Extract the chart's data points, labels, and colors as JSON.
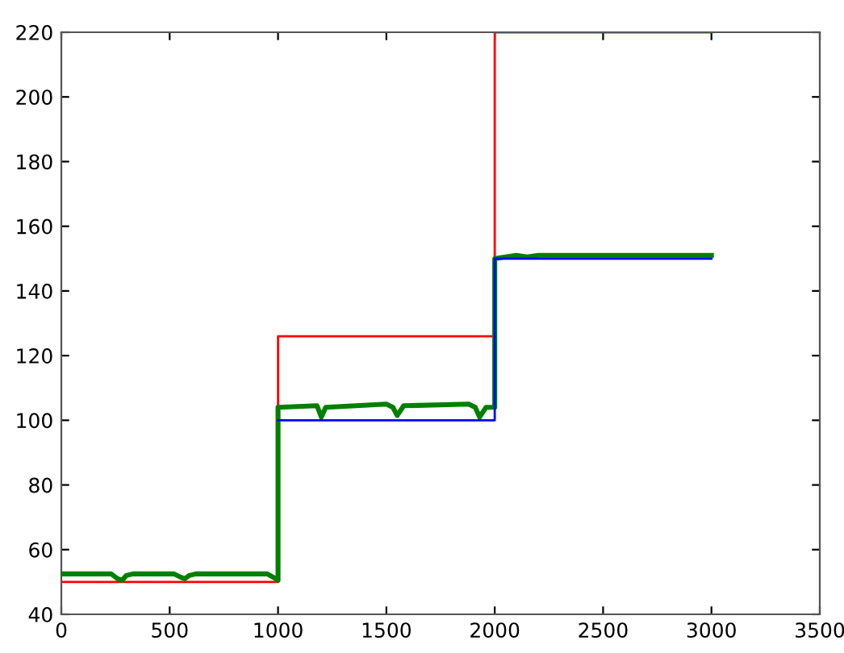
{
  "chart_data": {
    "type": "line",
    "xlim": [
      0,
      3500
    ],
    "ylim": [
      40,
      220
    ],
    "xticks": [
      0,
      500,
      1000,
      1500,
      2000,
      2500,
      3000,
      3500
    ],
    "yticks": [
      40,
      60,
      80,
      100,
      120,
      140,
      160,
      180,
      200,
      220
    ],
    "grid": false,
    "legend": false,
    "marker": "none",
    "line_style": "solid",
    "series": [
      {
        "color": "#0000ff",
        "x": [
          1000,
          2000,
          2000,
          3000
        ],
        "values": [
          100,
          100,
          150,
          150
        ]
      },
      {
        "color": "#008000",
        "x": [
          0,
          230,
          260,
          280,
          300,
          330,
          520,
          550,
          570,
          590,
          620,
          950,
          990,
          1000,
          1000,
          1180,
          1200,
          1220,
          1500,
          1530,
          1550,
          1580,
          1880,
          1910,
          1930,
          1960,
          2000,
          2000,
          2050,
          2100,
          2150,
          2200,
          2300,
          2400,
          2500,
          2600,
          2700,
          2800,
          2900,
          3000
        ],
        "values": [
          52.5,
          52.5,
          51,
          50.5,
          52,
          52.5,
          52.5,
          51.5,
          51,
          52,
          52.5,
          52.5,
          51,
          50.5,
          104,
          104.5,
          101,
          104,
          105,
          104,
          101.5,
          104.5,
          105,
          104,
          101,
          104,
          104,
          150,
          150.5,
          151,
          150.5,
          151,
          151,
          151,
          151,
          151,
          151,
          151,
          151,
          151
        ]
      },
      {
        "color": "#ff0000",
        "x": [
          0,
          1000,
          1000,
          2000,
          2000,
          3000
        ],
        "values": [
          50,
          50,
          126,
          126,
          220,
          220
        ]
      }
    ]
  }
}
